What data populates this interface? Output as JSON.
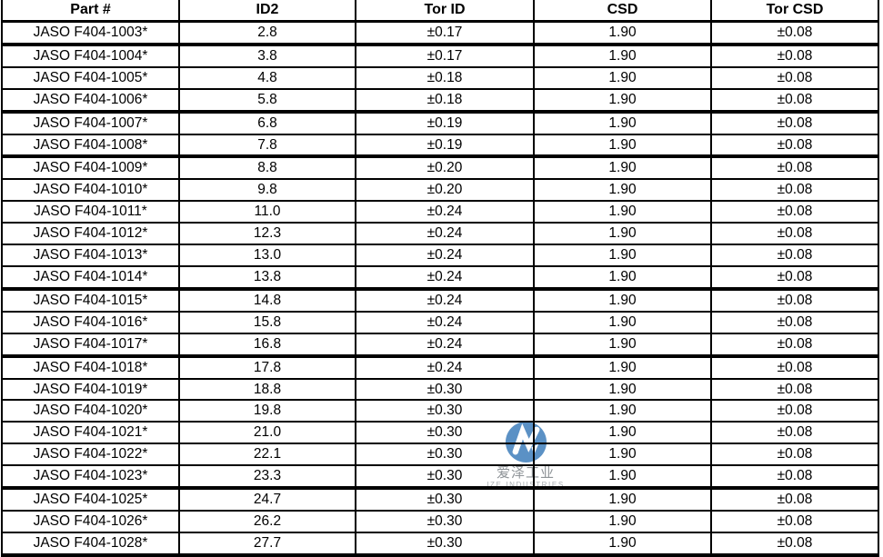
{
  "table": {
    "columns": [
      "Part #",
      "ID2",
      "Tor ID",
      "CSD",
      "Tor CSD"
    ],
    "rows": [
      [
        "JASO F404-1003*",
        "2.8",
        "±0.17",
        "1.90",
        "±0.08"
      ],
      [
        "JASO F404-1004*",
        "3.8",
        "±0.17",
        "1.90",
        "±0.08"
      ],
      [
        "JASO F404-1005*",
        "4.8",
        "±0.18",
        "1.90",
        "±0.08"
      ],
      [
        "JASO F404-1006*",
        "5.8",
        "±0.18",
        "1.90",
        "±0.08"
      ],
      [
        "JASO F404-1007*",
        "6.8",
        "±0.19",
        "1.90",
        "±0.08"
      ],
      [
        "JASO F404-1008*",
        "7.8",
        "±0.19",
        "1.90",
        "±0.08"
      ],
      [
        "JASO F404-1009*",
        "8.8",
        "±0.20",
        "1.90",
        "±0.08"
      ],
      [
        "JASO F404-1010*",
        "9.8",
        "±0.20",
        "1.90",
        "±0.08"
      ],
      [
        "JASO F404-1011*",
        "11.0",
        "±0.24",
        "1.90",
        "±0.08"
      ],
      [
        "JASO F404-1012*",
        "12.3",
        "±0.24",
        "1.90",
        "±0.08"
      ],
      [
        "JASO F404-1013*",
        "13.0",
        "±0.24",
        "1.90",
        "±0.08"
      ],
      [
        "JASO F404-1014*",
        "13.8",
        "±0.24",
        "1.90",
        "±0.08"
      ],
      [
        "JASO F404-1015*",
        "14.8",
        "±0.24",
        "1.90",
        "±0.08"
      ],
      [
        "JASO F404-1016*",
        "15.8",
        "±0.24",
        "1.90",
        "±0.08"
      ],
      [
        "JASO F404-1017*",
        "16.8",
        "±0.24",
        "1.90",
        "±0.08"
      ],
      [
        "JASO F404-1018*",
        "17.8",
        "±0.24",
        "1.90",
        "±0.08"
      ],
      [
        "JASO F404-1019*",
        "18.8",
        "±0.30",
        "1.90",
        "±0.08"
      ],
      [
        "JASO F404-1020*",
        "19.8",
        "±0.30",
        "1.90",
        "±0.08"
      ],
      [
        "JASO F404-1021*",
        "21.0",
        "±0.30",
        "1.90",
        "±0.08"
      ],
      [
        "JASO F404-1022*",
        "22.1",
        "±0.30",
        "1.90",
        "±0.08"
      ],
      [
        "JASO F404-1023*",
        "23.3",
        "±0.30",
        "1.90",
        "±0.08"
      ],
      [
        "JASO F404-1025*",
        "24.7",
        "±0.30",
        "1.90",
        "±0.08"
      ],
      [
        "JASO F404-1026*",
        "26.2",
        "±0.30",
        "1.90",
        "±0.08"
      ],
      [
        "JASO F404-1028*",
        "27.7",
        "±0.30",
        "1.90",
        "±0.08"
      ]
    ]
  },
  "watermark": {
    "chinese_name": "爱泽工业",
    "english_name": "IZE INDUSTRIES",
    "logo_color": "#5B91C5"
  }
}
